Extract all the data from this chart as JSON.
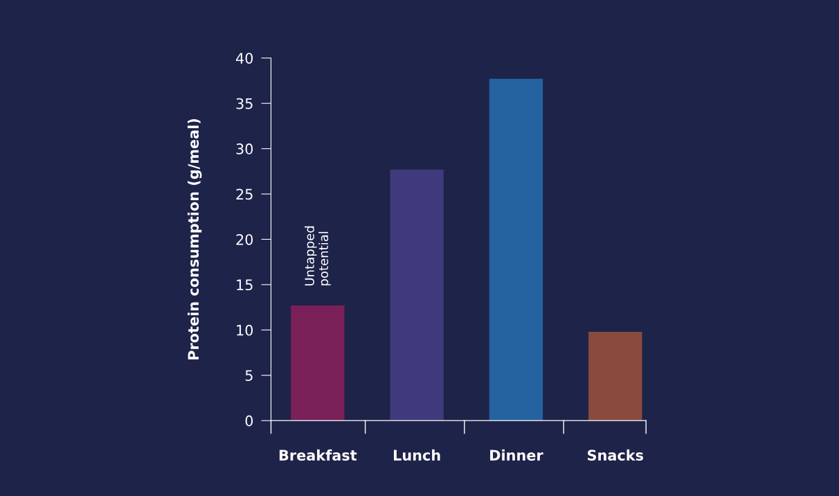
{
  "chart_data": {
    "type": "bar",
    "ylabel": "Protein consumption (g/meal)",
    "categories": [
      "Breakfast",
      "Lunch",
      "Dinner",
      "Snacks"
    ],
    "values": [
      12.7,
      27.7,
      37.7,
      9.8
    ],
    "colors": [
      "#7a2058",
      "#3f3a7c",
      "#2563a0",
      "#8a4a3e"
    ],
    "ylim": [
      0,
      40
    ],
    "yticks": [
      0,
      5,
      10,
      15,
      20,
      25,
      30,
      35,
      40
    ],
    "grid": false,
    "annotations": [
      "Untapped\npotential"
    ]
  }
}
